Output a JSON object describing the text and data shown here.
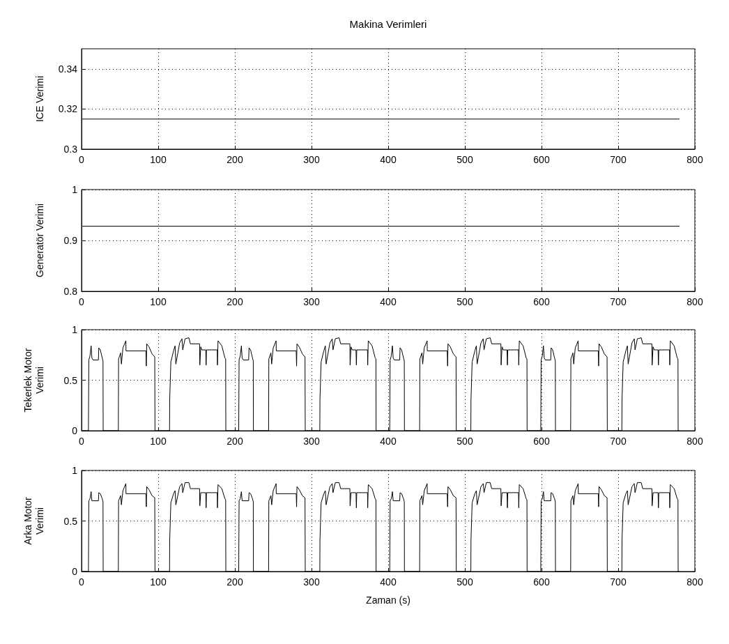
{
  "chart_data": [
    {
      "type": "line",
      "title": "Makina Verimleri",
      "ylabel": "ICE Verimi",
      "xlim": [
        0,
        800
      ],
      "xticks": [
        0,
        100,
        200,
        300,
        400,
        500,
        600,
        700,
        800
      ],
      "ylim": [
        0.3,
        0.35
      ],
      "yticks": [
        0.3,
        0.32,
        0.34
      ],
      "grid": true,
      "series": [
        {
          "color": "#000000",
          "x": [
            0,
            780
          ],
          "values": [
            0.315,
            0.315
          ]
        }
      ]
    },
    {
      "type": "line",
      "ylabel": "Generatör Verimi",
      "xlim": [
        0,
        800
      ],
      "xticks": [
        0,
        100,
        200,
        300,
        400,
        500,
        600,
        700,
        800
      ],
      "ylim": [
        0.8,
        1
      ],
      "yticks": [
        0.8,
        0.9,
        1
      ],
      "grid": true,
      "series": [
        {
          "color": "#000000",
          "x": [
            0,
            780
          ],
          "values": [
            0.928,
            0.928
          ]
        }
      ]
    },
    {
      "type": "line",
      "ylabel": "Tekerlek Motor\nVerimi",
      "xlim": [
        0,
        800
      ],
      "xticks": [
        0,
        100,
        200,
        300,
        400,
        500,
        600,
        700,
        800
      ],
      "ylim": [
        0,
        1
      ],
      "yticks": [
        0,
        0.5,
        1
      ],
      "grid": true,
      "series": [
        {
          "color": "#000000",
          "x": [
            0,
            9,
            9.5,
            11,
            12.5,
            13.5,
            15,
            22,
            22.5,
            24.5,
            27,
            28,
            28.2,
            48,
            48.3,
            51,
            52,
            54,
            57.8,
            58,
            84,
            84.5,
            85,
            88,
            92,
            95.5,
            95.8,
            114.8,
            115,
            116.5,
            120,
            122,
            123,
            128,
            131,
            132,
            135,
            140,
            142,
            154,
            154.3,
            155.5,
            157,
            162,
            162.5,
            163,
            177,
            177.3,
            178,
            183,
            187,
            188,
            188.2,
            205,
            205.5,
            207,
            208.5,
            209.5,
            211,
            218,
            218.5,
            220.5,
            223,
            224,
            224.2,
            244,
            244.3,
            247,
            248,
            250,
            253.8,
            254,
            280,
            280.5,
            281,
            284,
            288,
            291.5,
            291.8,
            310.8,
            311,
            312.5,
            316,
            318,
            319,
            324,
            327,
            328,
            331,
            336,
            338,
            350,
            350.3,
            351.5,
            353,
            358,
            358.5,
            359,
            373,
            373.3,
            374,
            379,
            383,
            384,
            384.2,
            402,
            402.5,
            404,
            405.5,
            406.5,
            408,
            415,
            415.5,
            417.5,
            420,
            421,
            421.2,
            441,
            441.3,
            444,
            445,
            447,
            450.8,
            451,
            477,
            477.5,
            478,
            481,
            485,
            488.5,
            488.8,
            507.8,
            508,
            509.5,
            513,
            515,
            516,
            521,
            524,
            525,
            528,
            533,
            535,
            547,
            547.3,
            548.5,
            550,
            555,
            555.5,
            556,
            570,
            570.3,
            571,
            576,
            580,
            581,
            581.2,
            599,
            599.5,
            601,
            602.5,
            603.5,
            605,
            612,
            612.5,
            614.5,
            617,
            618,
            618.2,
            638,
            638.3,
            641,
            642,
            644,
            647.8,
            648,
            674,
            674.5,
            675,
            678,
            682,
            685.5,
            685.8,
            704.8,
            705,
            706.5,
            710,
            712,
            713,
            718,
            721,
            722,
            725,
            730,
            732,
            744,
            744.3,
            745.5,
            747,
            752,
            752.5,
            753,
            767,
            767.3,
            768,
            773,
            777,
            778,
            778.2,
            780
          ],
          "values": [
            0,
            0,
            0.7,
            0.74,
            0.84,
            0.72,
            0.7,
            0.7,
            0.82,
            0.8,
            0.72,
            0.69,
            0,
            0,
            0.71,
            0.77,
            0.66,
            0.82,
            0.89,
            0.79,
            0.79,
            0.64,
            0.86,
            0.83,
            0.76,
            0.73,
            0,
            0,
            0.31,
            0.68,
            0.79,
            0.84,
            0.66,
            0.87,
            0.91,
            0.8,
            0.91,
            0.92,
            0.86,
            0.86,
            0.65,
            0.83,
            0.8,
            0.8,
            0.65,
            0.8,
            0.8,
            0.65,
            0.89,
            0.84,
            0.72,
            0.71,
            0,
            0,
            0.7,
            0.74,
            0.84,
            0.72,
            0.7,
            0.7,
            0.82,
            0.8,
            0.72,
            0.69,
            0,
            0,
            0.71,
            0.77,
            0.66,
            0.82,
            0.89,
            0.79,
            0.79,
            0.64,
            0.86,
            0.83,
            0.76,
            0.73,
            0,
            0,
            0.31,
            0.68,
            0.79,
            0.84,
            0.66,
            0.87,
            0.91,
            0.8,
            0.91,
            0.92,
            0.86,
            0.86,
            0.65,
            0.83,
            0.8,
            0.8,
            0.65,
            0.8,
            0.8,
            0.65,
            0.89,
            0.84,
            0.72,
            0.71,
            0,
            0,
            0.7,
            0.74,
            0.84,
            0.72,
            0.7,
            0.7,
            0.82,
            0.8,
            0.72,
            0.69,
            0,
            0,
            0.71,
            0.77,
            0.66,
            0.82,
            0.89,
            0.79,
            0.79,
            0.64,
            0.86,
            0.83,
            0.76,
            0.73,
            0,
            0,
            0.31,
            0.68,
            0.79,
            0.84,
            0.66,
            0.87,
            0.91,
            0.8,
            0.91,
            0.92,
            0.86,
            0.86,
            0.65,
            0.83,
            0.8,
            0.8,
            0.65,
            0.8,
            0.8,
            0.65,
            0.89,
            0.84,
            0.72,
            0.71,
            0,
            0,
            0.7,
            0.74,
            0.84,
            0.72,
            0.7,
            0.7,
            0.82,
            0.8,
            0.72,
            0.69,
            0,
            0,
            0.71,
            0.77,
            0.66,
            0.82,
            0.89,
            0.79,
            0.79,
            0.64,
            0.86,
            0.83,
            0.76,
            0.73,
            0,
            0,
            0.31,
            0.68,
            0.79,
            0.84,
            0.66,
            0.87,
            0.91,
            0.8,
            0.91,
            0.92,
            0.86,
            0.86,
            0.65,
            0.83,
            0.8,
            0.8,
            0.65,
            0.8,
            0.8,
            0.65,
            0.89,
            0.84,
            0.72,
            0.71,
            0,
            0
          ]
        }
      ]
    },
    {
      "type": "line",
      "ylabel": "Arka Motor\nVerimi",
      "xlabel": "Zaman (s)",
      "xlim": [
        0,
        800
      ],
      "xticks": [
        0,
        100,
        200,
        300,
        400,
        500,
        600,
        700,
        800
      ],
      "ylim": [
        0,
        1
      ],
      "yticks": [
        0,
        0.5,
        1
      ],
      "grid": true,
      "series": [
        {
          "color": "#000000",
          "x": [
            0,
            9,
            9.5,
            11,
            12.5,
            13.5,
            15,
            22,
            22.5,
            24.5,
            27,
            28,
            28.2,
            48,
            48.3,
            51,
            52,
            54,
            57.8,
            58,
            84,
            84.5,
            85,
            88,
            92,
            95.5,
            95.8,
            114.8,
            115,
            116.5,
            120,
            122,
            123,
            128,
            131,
            132,
            135,
            140,
            142,
            154,
            154.3,
            155.5,
            157,
            162,
            162.5,
            163,
            177,
            177.3,
            178,
            183,
            187,
            188,
            188.2,
            205,
            205.5,
            207,
            208.5,
            209.5,
            211,
            218,
            218.5,
            220.5,
            223,
            224,
            224.2,
            244,
            244.3,
            247,
            248,
            250,
            253.8,
            254,
            280,
            280.5,
            281,
            284,
            288,
            291.5,
            291.8,
            310.8,
            311,
            312.5,
            316,
            318,
            319,
            324,
            327,
            328,
            331,
            336,
            338,
            350,
            350.3,
            351.5,
            353,
            358,
            358.5,
            359,
            373,
            373.3,
            374,
            379,
            383,
            384,
            384.2,
            402,
            402.5,
            404,
            405.5,
            406.5,
            408,
            415,
            415.5,
            417.5,
            420,
            421,
            421.2,
            441,
            441.3,
            444,
            445,
            447,
            450.8,
            451,
            477,
            477.5,
            478,
            481,
            485,
            488.5,
            488.8,
            507.8,
            508,
            509.5,
            513,
            515,
            516,
            521,
            524,
            525,
            528,
            533,
            535,
            547,
            547.3,
            548.5,
            550,
            555,
            555.5,
            556,
            570,
            570.3,
            571,
            576,
            580,
            581,
            581.2,
            599,
            599.5,
            601,
            602.5,
            603.5,
            605,
            612,
            612.5,
            614.5,
            617,
            618,
            618.2,
            638,
            638.3,
            641,
            642,
            644,
            647.8,
            648,
            674,
            674.5,
            675,
            678,
            682,
            685.5,
            685.8,
            704.8,
            705,
            706.5,
            710,
            712,
            713,
            718,
            721,
            722,
            725,
            730,
            732,
            744,
            744.3,
            745.5,
            747,
            752,
            752.5,
            753,
            767,
            767.3,
            768,
            773,
            777,
            778,
            778.2,
            780
          ],
          "values": [
            0,
            0,
            0.7,
            0.72,
            0.79,
            0.7,
            0.7,
            0.7,
            0.78,
            0.77,
            0.72,
            0.69,
            0,
            0,
            0.7,
            0.75,
            0.66,
            0.8,
            0.87,
            0.77,
            0.77,
            0.64,
            0.84,
            0.81,
            0.75,
            0.73,
            0,
            0,
            0.31,
            0.68,
            0.77,
            0.8,
            0.66,
            0.84,
            0.87,
            0.78,
            0.88,
            0.88,
            0.82,
            0.82,
            0.65,
            0.78,
            0.78,
            0.78,
            0.63,
            0.78,
            0.78,
            0.63,
            0.86,
            0.82,
            0.72,
            0.71,
            0,
            0,
            0.7,
            0.72,
            0.79,
            0.7,
            0.7,
            0.7,
            0.78,
            0.77,
            0.72,
            0.69,
            0,
            0,
            0.7,
            0.75,
            0.66,
            0.8,
            0.87,
            0.77,
            0.77,
            0.64,
            0.84,
            0.81,
            0.75,
            0.73,
            0,
            0,
            0.31,
            0.68,
            0.77,
            0.8,
            0.66,
            0.84,
            0.87,
            0.78,
            0.88,
            0.88,
            0.82,
            0.82,
            0.65,
            0.78,
            0.78,
            0.78,
            0.63,
            0.78,
            0.78,
            0.63,
            0.86,
            0.82,
            0.72,
            0.71,
            0,
            0,
            0.7,
            0.72,
            0.79,
            0.7,
            0.7,
            0.7,
            0.78,
            0.77,
            0.72,
            0.69,
            0,
            0,
            0.7,
            0.75,
            0.66,
            0.8,
            0.87,
            0.77,
            0.77,
            0.64,
            0.84,
            0.81,
            0.75,
            0.73,
            0,
            0,
            0.31,
            0.68,
            0.77,
            0.8,
            0.66,
            0.84,
            0.87,
            0.78,
            0.88,
            0.88,
            0.82,
            0.82,
            0.65,
            0.78,
            0.78,
            0.78,
            0.63,
            0.78,
            0.78,
            0.63,
            0.86,
            0.82,
            0.72,
            0.71,
            0,
            0,
            0.7,
            0.72,
            0.79,
            0.7,
            0.7,
            0.7,
            0.78,
            0.77,
            0.72,
            0.69,
            0,
            0,
            0.7,
            0.75,
            0.66,
            0.8,
            0.87,
            0.77,
            0.77,
            0.64,
            0.84,
            0.81,
            0.75,
            0.73,
            0,
            0,
            0.31,
            0.68,
            0.77,
            0.8,
            0.66,
            0.84,
            0.87,
            0.78,
            0.88,
            0.88,
            0.82,
            0.82,
            0.65,
            0.78,
            0.78,
            0.78,
            0.63,
            0.78,
            0.78,
            0.63,
            0.86,
            0.82,
            0.72,
            0.71,
            0,
            0
          ]
        }
      ]
    }
  ]
}
